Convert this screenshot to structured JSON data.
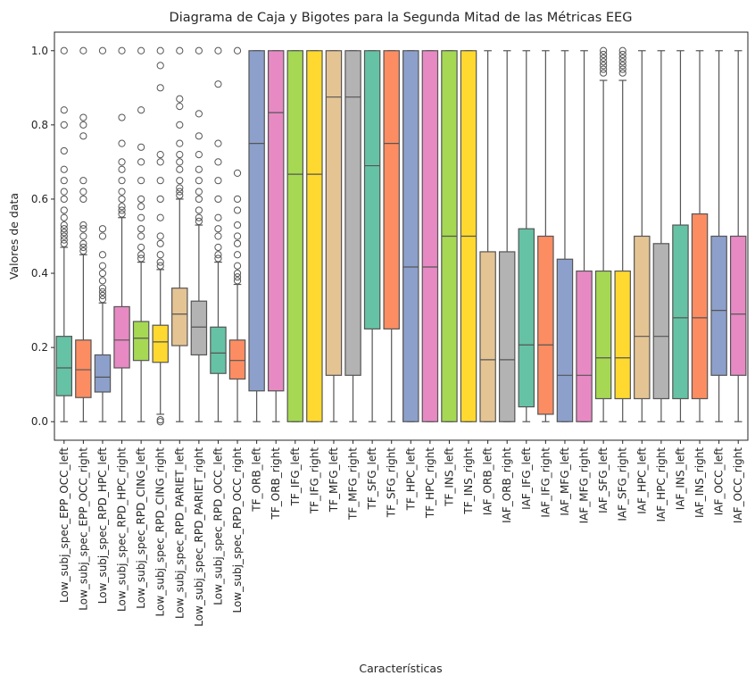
{
  "chart_data": {
    "type": "box",
    "title": "Diagrama de Caja y Bigotes para la Segunda Mitad de las Métricas EEG",
    "xlabel": "Características",
    "ylabel": "Valores de data",
    "ylim": [
      -0.05,
      1.05
    ],
    "yticks": [
      "0.0",
      "0.2",
      "0.4",
      "0.6",
      "0.8",
      "1.0"
    ],
    "grid": false,
    "palette": [
      "#66c2a5",
      "#fc8d62",
      "#8da0cb",
      "#e78ac3",
      "#a6d854",
      "#ffd92f",
      "#e5c494",
      "#b3b3b3"
    ],
    "boxes": [
      {
        "label": "Low_subj_spec_EPP_OCC_left",
        "whislo": 0.0,
        "q1": 0.07,
        "med": 0.145,
        "q3": 0.23,
        "whishi": 0.47,
        "fliers": [
          0.48,
          0.49,
          0.5,
          0.51,
          0.52,
          0.53,
          0.55,
          0.57,
          0.6,
          0.62,
          0.65,
          0.68,
          0.73,
          0.8,
          0.84,
          1.0
        ]
      },
      {
        "label": "Low_subj_spec_EPP_OCC_right",
        "whislo": 0.0,
        "q1": 0.065,
        "med": 0.14,
        "q3": 0.22,
        "whishi": 0.45,
        "fliers": [
          0.46,
          0.47,
          0.48,
          0.5,
          0.52,
          0.53,
          0.6,
          0.62,
          0.65,
          0.77,
          0.8,
          0.82,
          1.0
        ]
      },
      {
        "label": "Low_subj_spec_RPD_HPC_left",
        "whislo": 0.0,
        "q1": 0.08,
        "med": 0.12,
        "q3": 0.18,
        "whishi": 0.32,
        "fliers": [
          0.33,
          0.34,
          0.35,
          0.36,
          0.38,
          0.4,
          0.42,
          0.45,
          0.5,
          0.52,
          1.0
        ]
      },
      {
        "label": "Low_subj_spec_RPD_HPC_right",
        "whislo": 0.0,
        "q1": 0.145,
        "med": 0.22,
        "q3": 0.31,
        "whishi": 0.55,
        "fliers": [
          0.56,
          0.57,
          0.58,
          0.6,
          0.62,
          0.65,
          0.68,
          0.7,
          0.75,
          0.82,
          1.0
        ]
      },
      {
        "label": "Low_subj_spec_RPD_CING_left",
        "whislo": 0.0,
        "q1": 0.165,
        "med": 0.225,
        "q3": 0.27,
        "whishi": 0.43,
        "fliers": [
          0.44,
          0.45,
          0.47,
          0.5,
          0.52,
          0.55,
          0.58,
          0.6,
          0.65,
          0.7,
          0.74,
          0.84,
          1.0
        ]
      },
      {
        "label": "Low_subj_spec_RPD_CING_right",
        "whislo": 0.02,
        "q1": 0.16,
        "med": 0.215,
        "q3": 0.26,
        "whishi": 0.41,
        "fliers": [
          0.0,
          0.005,
          0.42,
          0.43,
          0.45,
          0.48,
          0.5,
          0.55,
          0.6,
          0.65,
          0.7,
          0.72,
          0.9,
          0.96,
          1.0
        ]
      },
      {
        "label": "Low_subj_spec_RPD_PARIET_left",
        "whislo": 0.0,
        "q1": 0.205,
        "med": 0.29,
        "q3": 0.36,
        "whishi": 0.6,
        "fliers": [
          0.61,
          0.62,
          0.63,
          0.65,
          0.68,
          0.7,
          0.72,
          0.75,
          0.8,
          0.85,
          0.87,
          1.0
        ]
      },
      {
        "label": "Low_subj_spec_RPD_PARIET_right",
        "whislo": 0.0,
        "q1": 0.18,
        "med": 0.255,
        "q3": 0.325,
        "whishi": 0.53,
        "fliers": [
          0.54,
          0.55,
          0.57,
          0.6,
          0.62,
          0.65,
          0.68,
          0.72,
          0.77,
          0.83,
          1.0
        ]
      },
      {
        "label": "Low_subj_spec_RPD_OCC_left",
        "whislo": 0.0,
        "q1": 0.13,
        "med": 0.185,
        "q3": 0.255,
        "whishi": 0.43,
        "fliers": [
          0.44,
          0.45,
          0.47,
          0.5,
          0.52,
          0.55,
          0.6,
          0.65,
          0.7,
          0.75,
          0.91,
          1.0
        ]
      },
      {
        "label": "Low_subj_spec_RPD_OCC_right",
        "whislo": 0.0,
        "q1": 0.115,
        "med": 0.165,
        "q3": 0.22,
        "whishi": 0.37,
        "fliers": [
          0.38,
          0.39,
          0.4,
          0.42,
          0.45,
          0.48,
          0.5,
          0.53,
          0.57,
          0.6,
          0.67,
          1.0
        ]
      },
      {
        "label": "TF_ORB_left",
        "whislo": 0.0,
        "q1": 0.083,
        "med": 0.75,
        "q3": 1.0,
        "whishi": 1.0,
        "fliers": []
      },
      {
        "label": "TF_ORB_right",
        "whislo": 0.0,
        "q1": 0.083,
        "med": 0.833,
        "q3": 1.0,
        "whishi": 1.0,
        "fliers": []
      },
      {
        "label": "TF_IFG_left",
        "whislo": 0.0,
        "q1": 0.0,
        "med": 0.667,
        "q3": 1.0,
        "whishi": 1.0,
        "fliers": []
      },
      {
        "label": "TF_IFG_right",
        "whislo": 0.0,
        "q1": 0.0,
        "med": 0.667,
        "q3": 1.0,
        "whishi": 1.0,
        "fliers": []
      },
      {
        "label": "TF_MFG_left",
        "whislo": 0.0,
        "q1": 0.125,
        "med": 0.875,
        "q3": 1.0,
        "whishi": 1.0,
        "fliers": []
      },
      {
        "label": "TF_MFG_right",
        "whislo": 0.0,
        "q1": 0.125,
        "med": 0.875,
        "q3": 1.0,
        "whishi": 1.0,
        "fliers": []
      },
      {
        "label": "TF_SFG_left",
        "whislo": 0.0,
        "q1": 0.25,
        "med": 0.69,
        "q3": 1.0,
        "whishi": 1.0,
        "fliers": []
      },
      {
        "label": "TF_SFG_right",
        "whislo": 0.0,
        "q1": 0.25,
        "med": 0.75,
        "q3": 1.0,
        "whishi": 1.0,
        "fliers": []
      },
      {
        "label": "TF_HPC_left",
        "whislo": 0.0,
        "q1": 0.0,
        "med": 0.417,
        "q3": 1.0,
        "whishi": 1.0,
        "fliers": []
      },
      {
        "label": "TF_HPC_right",
        "whislo": 0.0,
        "q1": 0.0,
        "med": 0.417,
        "q3": 1.0,
        "whishi": 1.0,
        "fliers": []
      },
      {
        "label": "TF_INS_left",
        "whislo": 0.0,
        "q1": 0.0,
        "med": 0.5,
        "q3": 1.0,
        "whishi": 1.0,
        "fliers": []
      },
      {
        "label": "TF_INS_right",
        "whislo": 0.0,
        "q1": 0.0,
        "med": 0.5,
        "q3": 1.0,
        "whishi": 1.0,
        "fliers": []
      },
      {
        "label": "IAF_ORB_left",
        "whislo": 0.0,
        "q1": 0.0,
        "med": 0.167,
        "q3": 0.458,
        "whishi": 1.0,
        "fliers": []
      },
      {
        "label": "IAF_ORB_right",
        "whislo": 0.0,
        "q1": 0.0,
        "med": 0.167,
        "q3": 0.458,
        "whishi": 1.0,
        "fliers": []
      },
      {
        "label": "IAF_IFG_left",
        "whislo": 0.0,
        "q1": 0.04,
        "med": 0.207,
        "q3": 0.52,
        "whishi": 1.0,
        "fliers": []
      },
      {
        "label": "IAF_IFG_right",
        "whislo": 0.0,
        "q1": 0.02,
        "med": 0.207,
        "q3": 0.5,
        "whishi": 1.0,
        "fliers": []
      },
      {
        "label": "IAF_MFG_left",
        "whislo": 0.0,
        "q1": 0.0,
        "med": 0.125,
        "q3": 0.438,
        "whishi": 1.0,
        "fliers": []
      },
      {
        "label": "IAF_MFG_right",
        "whislo": 0.0,
        "q1": 0.0,
        "med": 0.125,
        "q3": 0.406,
        "whishi": 1.0,
        "fliers": []
      },
      {
        "label": "IAF_SFG_left",
        "whislo": 0.0,
        "q1": 0.062,
        "med": 0.172,
        "q3": 0.406,
        "whishi": 0.92,
        "fliers": [
          0.94,
          0.95,
          0.96,
          0.97,
          0.98,
          0.99,
          1.0
        ]
      },
      {
        "label": "IAF_SFG_right",
        "whislo": 0.0,
        "q1": 0.062,
        "med": 0.172,
        "q3": 0.406,
        "whishi": 0.92,
        "fliers": [
          0.94,
          0.95,
          0.96,
          0.97,
          0.98,
          0.99,
          1.0
        ]
      },
      {
        "label": "IAF_HPC_left",
        "whislo": 0.0,
        "q1": 0.062,
        "med": 0.23,
        "q3": 0.5,
        "whishi": 1.0,
        "fliers": []
      },
      {
        "label": "IAF_HPC_right",
        "whislo": 0.0,
        "q1": 0.062,
        "med": 0.23,
        "q3": 0.48,
        "whishi": 1.0,
        "fliers": []
      },
      {
        "label": "IAF_INS_left",
        "whislo": 0.0,
        "q1": 0.062,
        "med": 0.28,
        "q3": 0.53,
        "whishi": 1.0,
        "fliers": []
      },
      {
        "label": "IAF_INS_right",
        "whislo": 0.0,
        "q1": 0.062,
        "med": 0.28,
        "q3": 0.56,
        "whishi": 1.0,
        "fliers": []
      },
      {
        "label": "IAF_OCC_left",
        "whislo": 0.0,
        "q1": 0.125,
        "med": 0.3,
        "q3": 0.5,
        "whishi": 1.0,
        "fliers": []
      },
      {
        "label": "IAF_OCC_right",
        "whislo": 0.0,
        "q1": 0.125,
        "med": 0.29,
        "q3": 0.5,
        "whishi": 1.0,
        "fliers": []
      }
    ]
  }
}
